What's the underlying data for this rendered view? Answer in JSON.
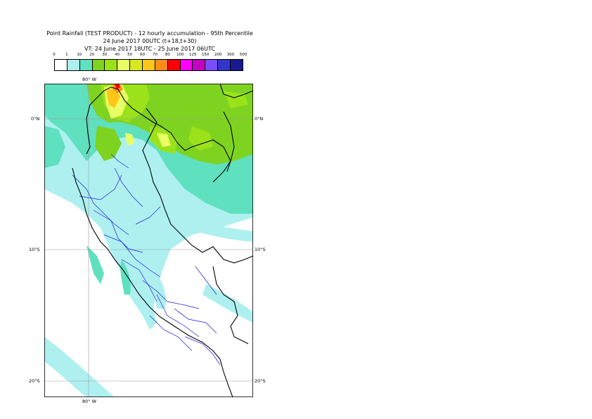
{
  "title": {
    "line1": "Point Rainfall (TEST PRODUCT) - 12 hourly accumulation - 95th Percentile",
    "line2": "24 June 2017 00UTC (t+18,t+30)",
    "line3": "VT: 24 June 2017 18UTC - 25 June 2017 06UTC"
  },
  "legend": {
    "labels": [
      "0",
      "1",
      "10",
      "20",
      "30",
      "40",
      "50",
      "60",
      "70",
      "80",
      "100",
      "125",
      "150",
      "200",
      "300",
      "500"
    ],
    "colors": [
      "#ffffff",
      "#aef0f0",
      "#5fe0bf",
      "#7ed321",
      "#9be21a",
      "#e8ff66",
      "#d9e624",
      "#ffc61a",
      "#ff8c1a",
      "#ff0000",
      "#ff00ff",
      "#c200c2",
      "#7a4dff",
      "#3336c8",
      "#1a1a8f"
    ]
  },
  "map": {
    "lon_labels": {
      "top": "80° W",
      "bottom": "80° W"
    },
    "lat_labels": {
      "equator_left": "0°N",
      "equator_right": "0°N",
      "s10_left": "10°S",
      "s10_right": "10°S",
      "s20_left": "20°S",
      "s20_right": "20°S"
    }
  }
}
